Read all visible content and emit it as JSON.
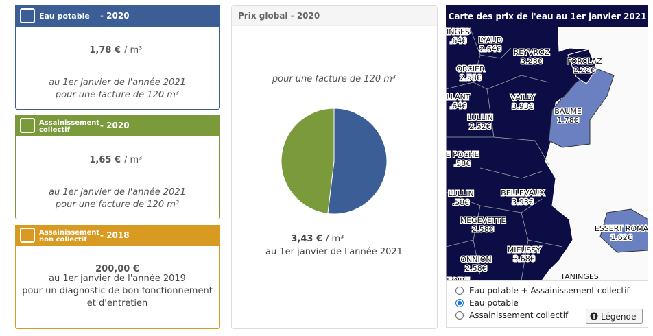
{
  "cards": [
    {
      "title": [
        "Eau potable"
      ],
      "year": "- 2020",
      "price": "1,78 €",
      "unit": "/ m³",
      "notes": [
        "au 1er janvier de l'année 2021",
        "pour une facture de 120 m³"
      ]
    },
    {
      "title": [
        "Assainissement",
        "collectif"
      ],
      "year": "- 2020",
      "price": "1,65 €",
      "unit": "/ m³",
      "notes": [
        "au 1er janvier de l'année 2021",
        "pour une facture de 120 m³"
      ]
    },
    {
      "title": [
        "Assainissement",
        "non collectif"
      ],
      "year": "- 2018",
      "price": "200,00 €",
      "notes": [
        "au 1er janvier de l'année 2019",
        "pour un diagnostic de bon fonctionnement",
        "et d'entretien"
      ]
    }
  ],
  "global": {
    "title": "Prix global - 2020",
    "subtitle": "pour une facture de 120 m³",
    "price": "3,43 €",
    "unit": "/ m³",
    "note": "au 1er janvier de l'année 2021"
  },
  "chart_data": {
    "type": "pie",
    "values": [
      1.78,
      1.65
    ],
    "colors": [
      "#3b5e97",
      "#7a9a3c"
    ]
  },
  "map": {
    "title": "Carte des prix de l'eau au 1er janvier 2021",
    "labels": [
      {
        "name": "INGES",
        "price": ".64€"
      },
      {
        "name": "LYAUD",
        "price": "2.64€"
      },
      {
        "name": "REYVROZ",
        "price": "3.28€"
      },
      {
        "name": "FORCLAZ",
        "price": "2.22€"
      },
      {
        "name": "ORCIER",
        "price": "2.58€"
      },
      {
        "name": "LLANT",
        "price": ".64€"
      },
      {
        "name": "VAILLY",
        "price": "3.93€"
      },
      {
        "name": "BAUME",
        "price": "1.78€"
      },
      {
        "name": "LULLIN",
        "price": "2.52€"
      },
      {
        "name": "E POCHE",
        "price": ".58€"
      },
      {
        "name": "LULLIN",
        "price": ".58€"
      },
      {
        "name": "BELLEVAUX",
        "price": "3.93€"
      },
      {
        "name": "ESSERT ROMA",
        "price": "1.62€"
      },
      {
        "name": "MEGEVETTE",
        "price": "2.58€"
      },
      {
        "name": "MIEUSSY",
        "price": "3.68€"
      },
      {
        "name": "ONNION",
        "price": "2.58€"
      },
      {
        "name": "TANINGES"
      },
      {
        "name": "EOIRE"
      }
    ],
    "options": [
      "Eau potable + Assainissement collectif",
      "Eau potable",
      "Assainissement collectif"
    ],
    "selected": 1,
    "legend_button": "Légende"
  }
}
